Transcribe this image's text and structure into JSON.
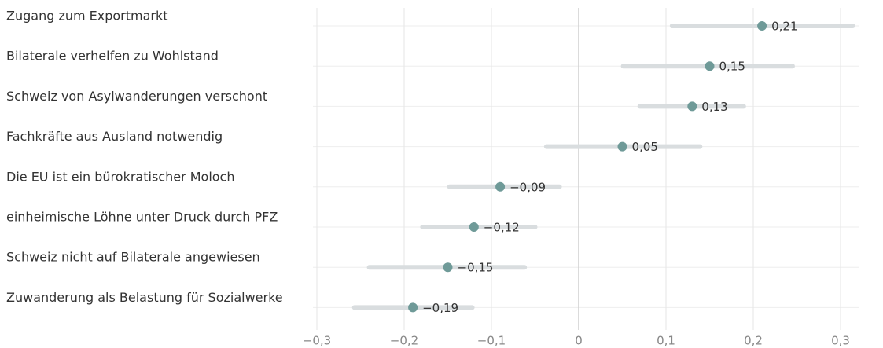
{
  "chart_data": {
    "type": "dot_interval",
    "categories": [
      "Zugang zum Exportmarkt",
      "Bilaterale verhelfen zu Wohlstand",
      "Schweiz von Asylwanderungen verschont",
      "Fachkräfte aus Ausland notwendig",
      "Die EU ist ein bürokratischer Moloch",
      "einheimische Löhne unter Druck durch PFZ",
      "Schweiz nicht auf Bilaterale angewiesen",
      "Zuwanderung als Belastung für Sozialwerke"
    ],
    "values": [
      0.21,
      0.15,
      0.13,
      0.05,
      -0.09,
      -0.12,
      -0.15,
      -0.19
    ],
    "value_labels": [
      "0,21",
      "0,15",
      "0,13",
      "0,05",
      "−0,09",
      "−0,12",
      "−0,15",
      "−0,19"
    ],
    "ci_low": [
      0.107,
      0.051,
      0.07,
      -0.037,
      -0.148,
      -0.179,
      -0.24,
      -0.257
    ],
    "ci_high": [
      0.314,
      0.245,
      0.189,
      0.139,
      -0.022,
      -0.05,
      -0.062,
      -0.122
    ],
    "color": "#6f9a98",
    "interval_color": "#d9dddf",
    "xlim": [
      -0.3,
      0.3
    ],
    "xticks": [
      {
        "value": -0.3,
        "label": "−0,3"
      },
      {
        "value": -0.2,
        "label": "−0,2"
      },
      {
        "value": -0.1,
        "label": "−0,1"
      },
      0,
      {
        "value": 0.1,
        "label": "0,1"
      },
      {
        "value": 0.2,
        "label": "0,2"
      },
      {
        "value": 0.3,
        "label": "0,3"
      }
    ],
    "grid": true
  }
}
